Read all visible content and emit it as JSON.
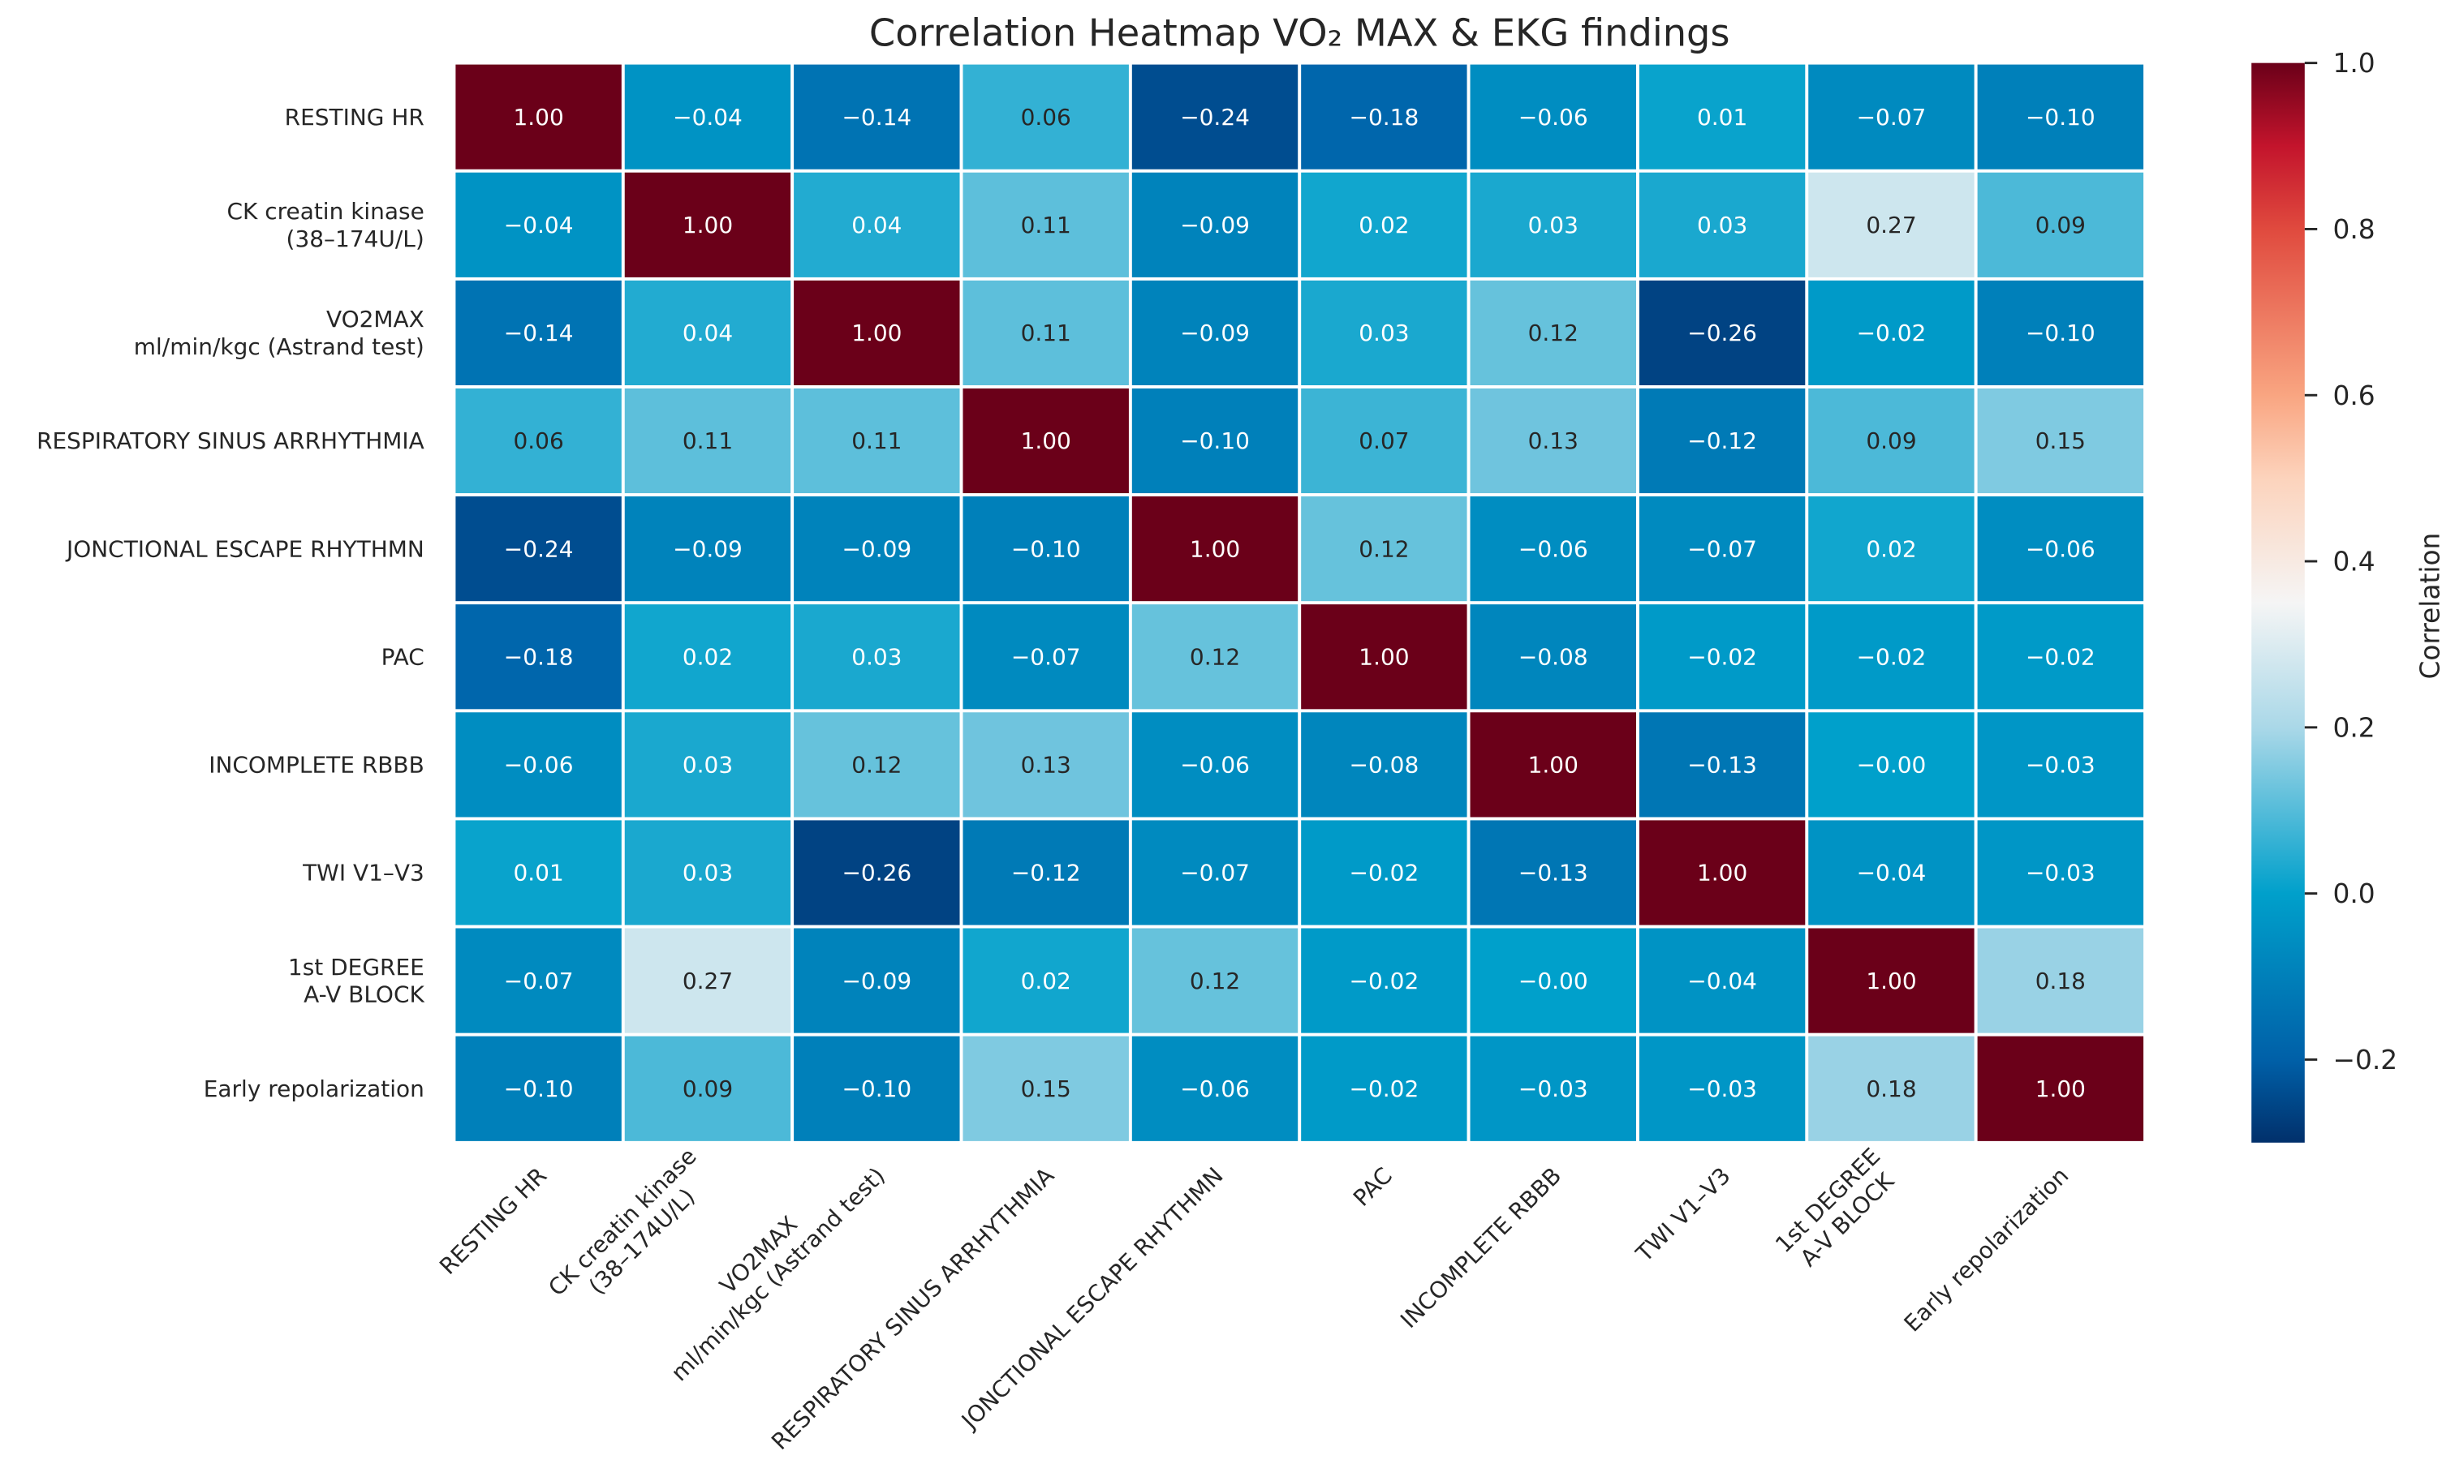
{
  "chart_data": {
    "type": "heatmap",
    "title": "Correlation Heatmap VO₂ MAX & EKG findings",
    "row_labels": [
      [
        "RESTING HR"
      ],
      [
        "CK creatin kinase",
        "(38–174U/L)"
      ],
      [
        "VO2MAX",
        "ml/min/kgc (Astrand test)"
      ],
      [
        "RESPIRATORY SINUS ARRHYTHMIA"
      ],
      [
        "JONCTIONAL ESCAPE RHYTHMN"
      ],
      [
        "PAC"
      ],
      [
        "INCOMPLETE RBBB"
      ],
      [
        "TWI V1–V3"
      ],
      [
        "1st DEGREE",
        "A-V BLOCK"
      ],
      [
        "Early repolarization"
      ]
    ],
    "col_labels": [
      [
        "RESTING HR"
      ],
      [
        "CK creatin kinase",
        "(38–174U/L)"
      ],
      [
        "VO2MAX",
        "ml/min/kgc (Astrand test)"
      ],
      [
        "RESPIRATORY SINUS ARRHYTHMIA"
      ],
      [
        "JONCTIONAL ESCAPE RHYTHMN"
      ],
      [
        "PAC"
      ],
      [
        "INCOMPLETE RBBB"
      ],
      [
        "TWI V1–V3"
      ],
      [
        "1st DEGREE",
        "A-V BLOCK"
      ],
      [
        "Early repolarization"
      ]
    ],
    "values": [
      [
        1.0,
        -0.04,
        -0.14,
        0.06,
        -0.24,
        -0.18,
        -0.06,
        0.01,
        -0.07,
        -0.1
      ],
      [
        -0.04,
        1.0,
        0.04,
        0.11,
        -0.09,
        0.02,
        0.03,
        0.03,
        0.27,
        0.09
      ],
      [
        -0.14,
        0.04,
        1.0,
        0.11,
        -0.09,
        0.03,
        0.12,
        -0.26,
        -0.02,
        -0.1
      ],
      [
        0.06,
        0.11,
        0.11,
        1.0,
        -0.1,
        0.07,
        0.13,
        -0.12,
        0.09,
        0.15
      ],
      [
        -0.24,
        -0.09,
        -0.09,
        -0.1,
        1.0,
        0.12,
        -0.06,
        -0.07,
        0.02,
        -0.06
      ],
      [
        -0.18,
        0.02,
        0.03,
        -0.07,
        0.12,
        1.0,
        -0.08,
        -0.02,
        -0.02,
        -0.02
      ],
      [
        -0.06,
        0.03,
        0.12,
        0.13,
        -0.06,
        -0.08,
        1.0,
        -0.13,
        -0.0,
        -0.03
      ],
      [
        0.01,
        0.03,
        -0.26,
        -0.12,
        -0.07,
        -0.02,
        -0.13,
        1.0,
        -0.04,
        -0.03
      ],
      [
        -0.07,
        0.27,
        -0.09,
        0.02,
        0.12,
        -0.02,
        -0.0,
        -0.04,
        1.0,
        0.18
      ],
      [
        -0.1,
        0.09,
        -0.1,
        0.15,
        -0.06,
        -0.02,
        -0.03,
        -0.03,
        0.18,
        1.0
      ]
    ],
    "value_format": "2 decimals",
    "colorbar": {
      "label": "Correlation",
      "range": [
        -0.3,
        1.0
      ],
      "ticks": [
        1.0,
        0.8,
        0.6,
        0.4,
        0.2,
        0.0,
        -0.2
      ],
      "tick_labels": [
        "1.0",
        "0.8",
        "0.6",
        "0.4",
        "0.2",
        "0.0",
        "−0.2"
      ],
      "colormap_stops": [
        [
          -0.3,
          "#01306b"
        ],
        [
          -0.2,
          "#0060a8"
        ],
        [
          0.0,
          "#00a0cb"
        ],
        [
          0.2,
          "#aad8e8"
        ],
        [
          0.35,
          "#f5f5f5"
        ],
        [
          0.5,
          "#fcd3bc"
        ],
        [
          0.6,
          "#f9a581"
        ],
        [
          0.8,
          "#e04a3e"
        ],
        [
          0.9,
          "#c3142c"
        ],
        [
          1.0,
          "#6b0019"
        ]
      ]
    },
    "grid": false,
    "legend": "right"
  }
}
